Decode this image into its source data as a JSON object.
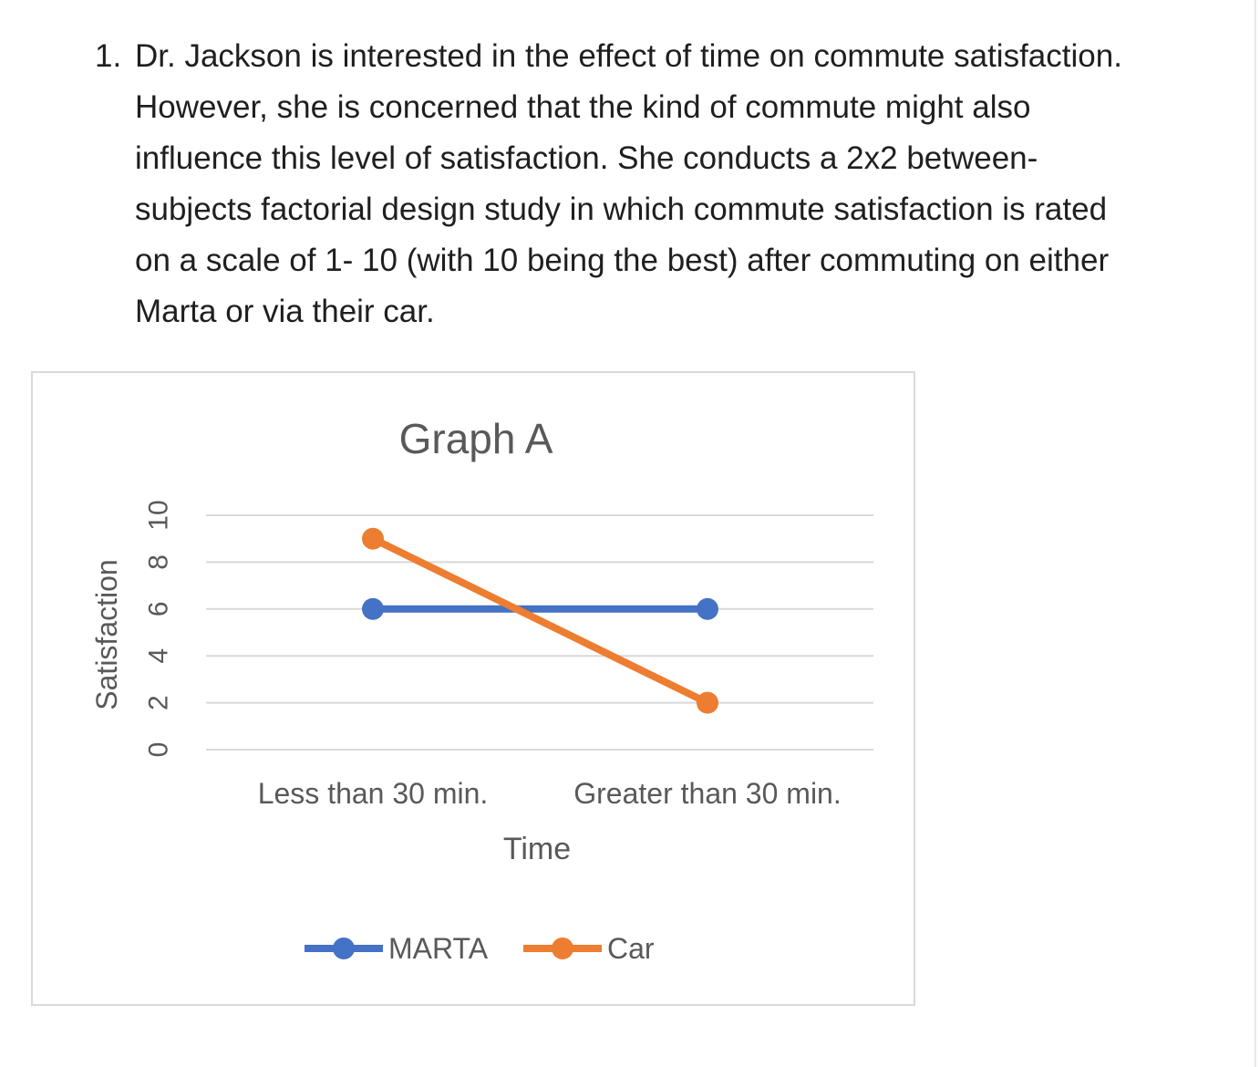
{
  "question": {
    "number": "1.",
    "lines": [
      "Dr. Jackson is interested in the effect of time on commute satisfaction.",
      "However, she is concerned that the kind of commute might also",
      "influence this level of satisfaction. She conducts a 2x2 between-",
      "subjects factorial design study in which commute satisfaction is rated",
      "on a scale of 1- 10 (with 10 being the best) after commuting on either",
      "Marta or via their car."
    ]
  },
  "chart_data": {
    "type": "line",
    "title": "Graph A",
    "xlabel": "Time",
    "ylabel": "Satisfaction",
    "categories": [
      "Less than 30 min.",
      "Greater than 30 min."
    ],
    "ylim": [
      0,
      10
    ],
    "yticks": [
      0,
      2,
      4,
      6,
      8,
      10
    ],
    "grid": true,
    "legend_position": "bottom",
    "series": [
      {
        "name": "MARTA",
        "values": [
          6,
          6
        ],
        "color": "#4472C4"
      },
      {
        "name": "Car",
        "values": [
          9,
          2
        ],
        "color": "#ED7D31"
      }
    ]
  }
}
